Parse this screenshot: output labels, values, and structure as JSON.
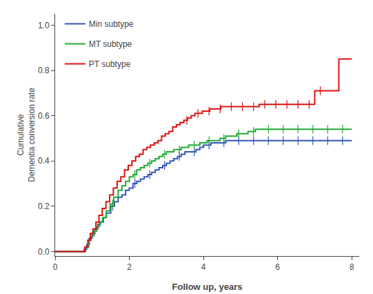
{
  "chart_data": {
    "type": "step",
    "xlabel": "Follow up, years",
    "ylabel": "Cumulative\nDementia conversion rate",
    "xlim": [
      0,
      8.2
    ],
    "ylim": [
      -0.02,
      1.05
    ],
    "xticks": [
      0,
      2,
      4,
      6,
      8
    ],
    "yticks": [
      {
        "value": 0.0,
        "label": "0.0"
      },
      0.2,
      0.4,
      0.6,
      0.8,
      {
        "value": 1.0,
        "label": "1.0"
      }
    ],
    "grid": false,
    "legend": "upper left",
    "series": [
      {
        "name": "Min subtype",
        "color": "#3355bb",
        "x": [
          0.0,
          0.75,
          0.78,
          0.85,
          0.92,
          1.0,
          1.07,
          1.15,
          1.22,
          1.3,
          1.38,
          1.5,
          1.6,
          1.7,
          1.8,
          1.9,
          2.0,
          2.1,
          2.2,
          2.3,
          2.4,
          2.5,
          2.6,
          2.7,
          2.8,
          2.9,
          3.0,
          3.1,
          3.2,
          3.3,
          3.4,
          3.5,
          3.6,
          3.7,
          3.8,
          3.9,
          4.0,
          4.1,
          4.2,
          4.3,
          4.4,
          4.5,
          4.6,
          4.7,
          4.8,
          4.9,
          5.0,
          5.1,
          5.2,
          5.3,
          5.4,
          5.5,
          5.6,
          5.7,
          5.8,
          6.0,
          6.1,
          6.2,
          6.3,
          6.5,
          6.6,
          6.7,
          6.8,
          7.0,
          7.1,
          7.2,
          7.3,
          7.5,
          7.6,
          7.8,
          8.0
        ],
        "values": [
          0.0,
          0.0,
          0.01,
          0.03,
          0.06,
          0.08,
          0.1,
          0.12,
          0.13,
          0.15,
          0.17,
          0.2,
          0.22,
          0.24,
          0.25,
          0.27,
          0.28,
          0.3,
          0.31,
          0.32,
          0.33,
          0.34,
          0.35,
          0.36,
          0.37,
          0.38,
          0.39,
          0.4,
          0.41,
          0.42,
          0.43,
          0.44,
          0.44,
          0.44,
          0.45,
          0.46,
          0.47,
          0.47,
          0.48,
          0.48,
          0.48,
          0.48,
          0.49,
          0.49,
          0.49,
          0.49,
          0.49,
          0.49,
          0.49,
          0.49,
          0.49,
          0.49,
          0.49,
          0.49,
          0.49,
          0.49,
          0.49,
          0.49,
          0.49,
          0.49,
          0.49,
          0.49,
          0.49,
          0.49,
          0.49,
          0.49,
          0.49,
          0.49,
          0.49,
          0.49,
          0.49
        ],
        "censor_x": [
          1.55,
          2.15,
          2.55,
          2.95,
          3.35,
          3.75,
          4.15,
          4.55,
          4.95,
          5.35,
          5.75,
          6.15,
          6.55,
          6.95,
          7.35,
          7.75
        ],
        "censor_y": [
          0.2,
          0.3,
          0.34,
          0.38,
          0.42,
          0.44,
          0.47,
          0.48,
          0.49,
          0.49,
          0.49,
          0.49,
          0.49,
          0.49,
          0.49,
          0.49
        ]
      },
      {
        "name": "MT subtype",
        "color": "#22aa33",
        "x": [
          0.0,
          0.75,
          0.82,
          0.9,
          0.97,
          1.05,
          1.12,
          1.2,
          1.28,
          1.38,
          1.48,
          1.58,
          1.7,
          1.8,
          1.9,
          2.0,
          2.1,
          2.2,
          2.3,
          2.4,
          2.5,
          2.6,
          2.7,
          2.8,
          2.9,
          3.0,
          3.1,
          3.2,
          3.3,
          3.4,
          3.5,
          3.6,
          3.7,
          3.8,
          3.9,
          4.0,
          4.1,
          4.2,
          4.3,
          4.45,
          4.5,
          4.6,
          4.7,
          4.8,
          4.9,
          5.0,
          5.1,
          5.2,
          5.3,
          5.4,
          5.5,
          5.6,
          5.7,
          5.8,
          5.9,
          6.0,
          6.1,
          6.2,
          6.3,
          6.5,
          6.6,
          6.7,
          6.8,
          7.0,
          7.1,
          7.2,
          7.3,
          7.5,
          7.6,
          7.8,
          8.0
        ],
        "values": [
          0.0,
          0.0,
          0.02,
          0.05,
          0.07,
          0.09,
          0.11,
          0.13,
          0.15,
          0.18,
          0.21,
          0.24,
          0.27,
          0.29,
          0.31,
          0.33,
          0.34,
          0.36,
          0.37,
          0.38,
          0.39,
          0.4,
          0.41,
          0.42,
          0.43,
          0.44,
          0.44,
          0.45,
          0.45,
          0.46,
          0.46,
          0.47,
          0.47,
          0.47,
          0.48,
          0.48,
          0.49,
          0.49,
          0.49,
          0.5,
          0.5,
          0.51,
          0.51,
          0.51,
          0.52,
          0.52,
          0.52,
          0.53,
          0.53,
          0.54,
          0.54,
          0.54,
          0.54,
          0.54,
          0.54,
          0.54,
          0.54,
          0.54,
          0.54,
          0.54,
          0.54,
          0.54,
          0.54,
          0.54,
          0.54,
          0.54,
          0.54,
          0.54,
          0.54,
          0.54,
          0.54
        ],
        "censor_x": [
          1.55,
          2.15,
          2.55,
          2.95,
          3.35,
          3.75,
          4.15,
          4.55,
          4.95,
          5.35,
          5.75,
          6.15,
          6.55,
          6.95,
          7.35,
          7.75
        ],
        "censor_y": [
          0.21,
          0.34,
          0.39,
          0.43,
          0.45,
          0.47,
          0.49,
          0.5,
          0.52,
          0.53,
          0.54,
          0.54,
          0.54,
          0.54,
          0.54,
          0.54
        ]
      },
      {
        "name": "PT subtype",
        "color": "#dd1111",
        "x": [
          0.0,
          0.72,
          0.8,
          0.88,
          0.95,
          1.02,
          1.1,
          1.18,
          1.27,
          1.37,
          1.47,
          1.57,
          1.67,
          1.77,
          1.87,
          1.97,
          2.07,
          2.17,
          2.27,
          2.37,
          2.47,
          2.57,
          2.67,
          2.77,
          2.87,
          2.97,
          3.07,
          3.17,
          3.27,
          3.37,
          3.47,
          3.57,
          3.67,
          3.77,
          3.87,
          3.97,
          4.07,
          4.17,
          4.27,
          4.37,
          4.47,
          4.57,
          4.67,
          4.77,
          4.87,
          4.97,
          5.07,
          5.17,
          5.27,
          5.5,
          5.6,
          5.7,
          5.8,
          5.9,
          6.0,
          6.1,
          6.2,
          6.3,
          6.4,
          6.5,
          6.6,
          6.7,
          6.8,
          6.9,
          7.0,
          7.55,
          7.65,
          7.8,
          8.0
        ],
        "values": [
          0.0,
          0.0,
          0.02,
          0.05,
          0.08,
          0.1,
          0.13,
          0.16,
          0.19,
          0.22,
          0.25,
          0.28,
          0.31,
          0.33,
          0.36,
          0.38,
          0.4,
          0.42,
          0.43,
          0.45,
          0.46,
          0.47,
          0.48,
          0.49,
          0.51,
          0.52,
          0.53,
          0.55,
          0.56,
          0.57,
          0.58,
          0.59,
          0.6,
          0.61,
          0.61,
          0.62,
          0.62,
          0.63,
          0.63,
          0.63,
          0.64,
          0.64,
          0.64,
          0.64,
          0.64,
          0.64,
          0.64,
          0.64,
          0.64,
          0.65,
          0.65,
          0.65,
          0.65,
          0.65,
          0.65,
          0.65,
          0.65,
          0.65,
          0.65,
          0.65,
          0.65,
          0.65,
          0.65,
          0.65,
          0.71,
          0.71,
          0.85,
          0.85,
          0.85
        ],
        "censor_x": [
          3.55,
          3.85,
          4.15,
          4.45,
          4.75,
          5.05,
          5.35,
          5.65,
          5.95,
          6.25,
          6.55,
          6.85,
          7.15
        ],
        "censor_y": [
          0.58,
          0.61,
          0.62,
          0.63,
          0.64,
          0.64,
          0.64,
          0.65,
          0.65,
          0.65,
          0.65,
          0.65,
          0.71
        ]
      }
    ]
  }
}
